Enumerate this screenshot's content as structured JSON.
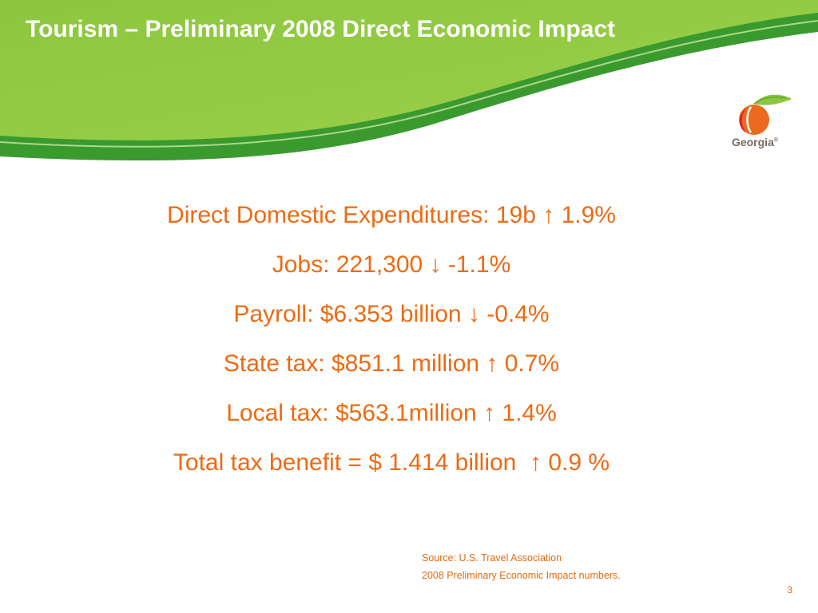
{
  "slide": {
    "title": "Tourism – Preliminary 2008 Direct Economic Impact",
    "logo": {
      "icon": "peach-icon",
      "text": "Georgia",
      "mark": "®"
    },
    "stats": [
      "Direct Domestic Expenditures: 19b ↑ 1.9%",
      "Jobs: 221,300 ↓ -1.1%",
      "Payroll: $6.353 billion ↓ -0.4%",
      "State tax: $851.1 million ↑ 0.7%",
      "Local tax: $563.1million ↑ 1.4%",
      "Total tax benefit = $ 1.414 billion  ↑ 0.9 %"
    ],
    "source": {
      "line1": "Source: U.S. Travel Association",
      "line2": "2008 Preliminary Economic Impact numbers."
    },
    "page_number": "3"
  },
  "colors": {
    "header_green_dark": "#3e9b2f",
    "header_green_light": "#8dc63f",
    "text_orange": "#ee6a12",
    "title_white": "#ffffff"
  }
}
